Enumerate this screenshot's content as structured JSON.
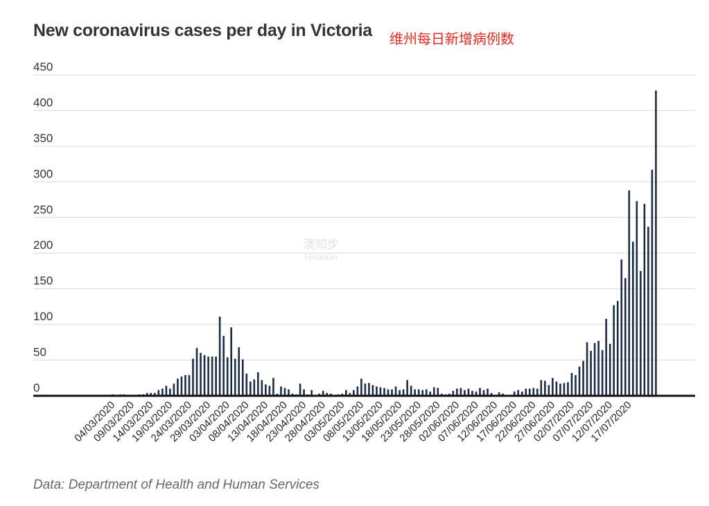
{
  "title": "New coronavirus cases per day in Victoria",
  "subtitle_cn": "维州每日新增病例数",
  "source": "Data: Department of Health and Human Services",
  "watermark": {
    "line1": "澳知步",
    "line2": "Hinabian"
  },
  "colors": {
    "bar": "#1b2a47",
    "grid": "#d9d9d9",
    "baseline": "#111111",
    "accent": "#e8281e"
  },
  "chart_data": {
    "type": "bar",
    "title": "New coronavirus cases per day in Victoria",
    "xlabel": "",
    "ylabel": "",
    "ylim": [
      0,
      450
    ],
    "yticks": [
      0,
      50,
      100,
      150,
      200,
      250,
      300,
      350,
      400,
      450
    ],
    "start_date": "2020-02-29",
    "grid": true,
    "xtick_labels": [
      "04/03/2020",
      "09/03/2020",
      "14/03/2020",
      "19/03/2020",
      "24/03/2020",
      "29/03/2020",
      "03/04/2020",
      "08/04/2020",
      "13/04/2020",
      "18/04/2020",
      "23/04/2020",
      "28/04/2020",
      "03/05/2020",
      "08/05/2020",
      "13/05/2020",
      "18/05/2020",
      "23/05/2020",
      "28/05/2020",
      "02/06/2020",
      "07/06/2020",
      "12/06/2020",
      "17/06/2020",
      "22/06/2020",
      "27/06/2020",
      "02/07/2020",
      "07/07/2020",
      "12/07/2020",
      "17/07/2020"
    ],
    "values": [
      0,
      0,
      0,
      0,
      2,
      0,
      2,
      2,
      0,
      0,
      0,
      2,
      2,
      4,
      4,
      4,
      8,
      10,
      14,
      10,
      17,
      24,
      27,
      29,
      29,
      52,
      67,
      60,
      57,
      55,
      55,
      55,
      111,
      84,
      54,
      96,
      52,
      68,
      51,
      31,
      20,
      23,
      33,
      22,
      16,
      14,
      25,
      3,
      13,
      11,
      9,
      3,
      2,
      17,
      9,
      2,
      8,
      1,
      3,
      7,
      4,
      3,
      1,
      2,
      3,
      8,
      4,
      8,
      13,
      24,
      17,
      18,
      15,
      13,
      12,
      11,
      9,
      9,
      13,
      8,
      9,
      22,
      14,
      9,
      9,
      8,
      9,
      6,
      12,
      11,
      3,
      2,
      3,
      7,
      10,
      11,
      8,
      10,
      7,
      6,
      11,
      8,
      10,
      4,
      0,
      5,
      3,
      1,
      0,
      6,
      8,
      6,
      10,
      10,
      11,
      10,
      22,
      21,
      15,
      25,
      20,
      17,
      18,
      19,
      32,
      29,
      41,
      49,
      75,
      63,
      74,
      77,
      64,
      108,
      73,
      127,
      133,
      191,
      165,
      288,
      216,
      273,
      175,
      269,
      237,
      317,
      428
    ]
  }
}
